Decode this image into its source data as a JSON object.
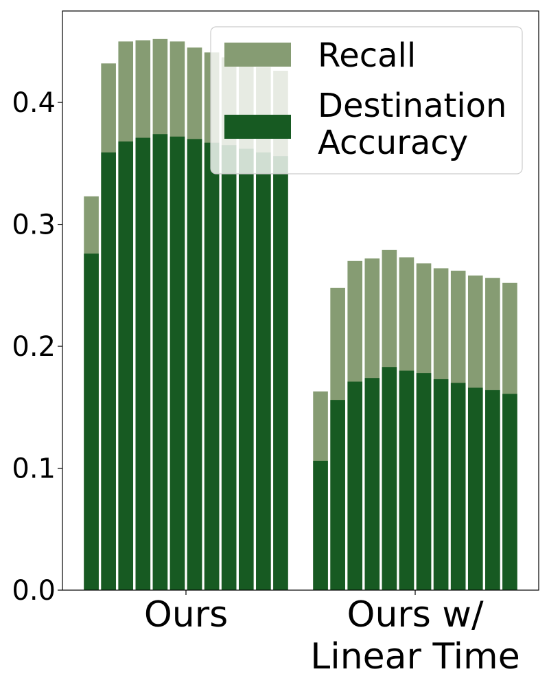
{
  "chart_data": {
    "type": "bar",
    "title": "",
    "xlabel": "",
    "ylabel": "",
    "ylim": [
      0,
      0.475
    ],
    "yticks": [
      0.0,
      0.1,
      0.2,
      0.3,
      0.4
    ],
    "ytick_labels": [
      "0.0",
      "0.1",
      "0.2",
      "0.3",
      "0.4"
    ],
    "grid": false,
    "legend_position": "top-right",
    "categories": [
      {
        "lines": [
          "Ours"
        ]
      },
      {
        "lines": [
          "Ours w/",
          "Linear Time"
        ]
      }
    ],
    "series": [
      {
        "name": "Recall",
        "color": "#869c73",
        "values": [
          [
            0.323,
            0.432,
            0.45,
            0.451,
            0.452,
            0.45,
            0.445,
            0.441,
            0.437,
            0.433,
            0.429,
            0.426
          ],
          [
            0.163,
            0.248,
            0.27,
            0.272,
            0.279,
            0.273,
            0.268,
            0.264,
            0.262,
            0.258,
            0.256,
            0.252
          ]
        ]
      },
      {
        "name": "Destination\nAccuracy",
        "color": "#175a22",
        "values": [
          [
            0.276,
            0.359,
            0.368,
            0.371,
            0.374,
            0.372,
            0.37,
            0.367,
            0.365,
            0.362,
            0.359,
            0.356
          ],
          [
            0.106,
            0.156,
            0.171,
            0.174,
            0.183,
            0.18,
            0.178,
            0.173,
            0.17,
            0.166,
            0.164,
            0.161
          ]
        ]
      }
    ]
  }
}
